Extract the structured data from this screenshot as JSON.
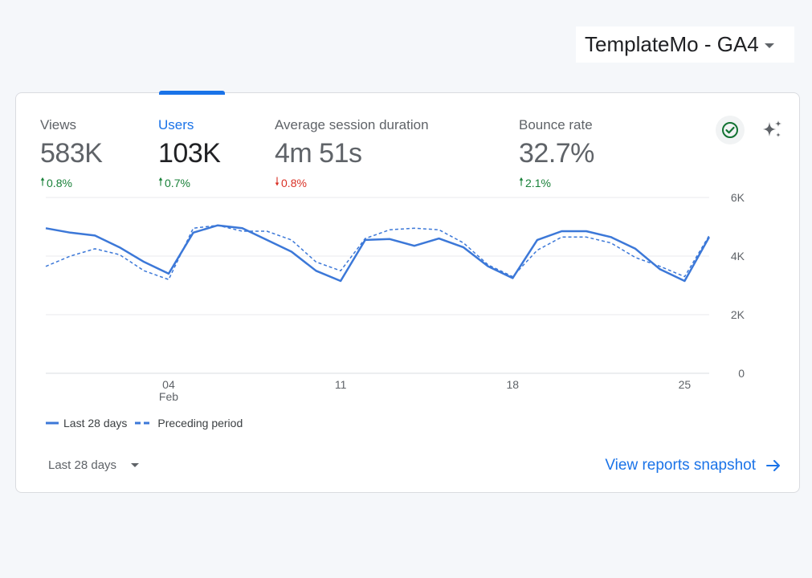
{
  "property": {
    "name": "TemplateMo - GA4"
  },
  "metrics": [
    {
      "label": "Views",
      "value": "583K",
      "change": "0.8%",
      "direction": "up"
    },
    {
      "label": "Users",
      "value": "103K",
      "change": "0.7%",
      "direction": "up"
    },
    {
      "label": "Average session duration",
      "value": "4m 51s",
      "change": "0.8%",
      "direction": "down"
    },
    {
      "label": "Bounce rate",
      "value": "32.7%",
      "change": "2.1%",
      "direction": "up"
    }
  ],
  "colors": {
    "accent": "#1a73e8",
    "line": "#3c78d8",
    "up": "#188038",
    "down": "#d93025"
  },
  "legend": {
    "current": "Last 28 days",
    "previous": "Preceding period"
  },
  "footer": {
    "date_range": "Last 28 days",
    "view_link": "View reports snapshot"
  },
  "chart_data": {
    "type": "line",
    "y_ticks": [
      "0",
      "2K",
      "4K",
      "6K"
    ],
    "ylim": [
      0,
      6000
    ],
    "x_ticks": [
      {
        "index": 5,
        "label": "04",
        "sublabel": "Feb"
      },
      {
        "index": 12,
        "label": "11"
      },
      {
        "index": 19,
        "label": "18"
      },
      {
        "index": 26,
        "label": "25"
      }
    ],
    "grid": true,
    "series": [
      {
        "name": "Last 28 days",
        "style": "solid",
        "values": [
          4950,
          4800,
          4700,
          4300,
          3800,
          3400,
          4800,
          5050,
          4950,
          4550,
          4150,
          3500,
          3150,
          4550,
          4580,
          4350,
          4600,
          4300,
          3650,
          3250,
          4550,
          4850,
          4850,
          4650,
          4250,
          3550,
          3150,
          4650
        ]
      },
      {
        "name": "Preceding period",
        "style": "dashed",
        "values": [
          3650,
          4000,
          4250,
          4050,
          3500,
          3200,
          4950,
          5050,
          4850,
          4850,
          4550,
          3800,
          3500,
          4600,
          4900,
          4950,
          4900,
          4450,
          3700,
          3300,
          4200,
          4650,
          4650,
          4450,
          3950,
          3650,
          3300,
          4700
        ]
      }
    ]
  }
}
